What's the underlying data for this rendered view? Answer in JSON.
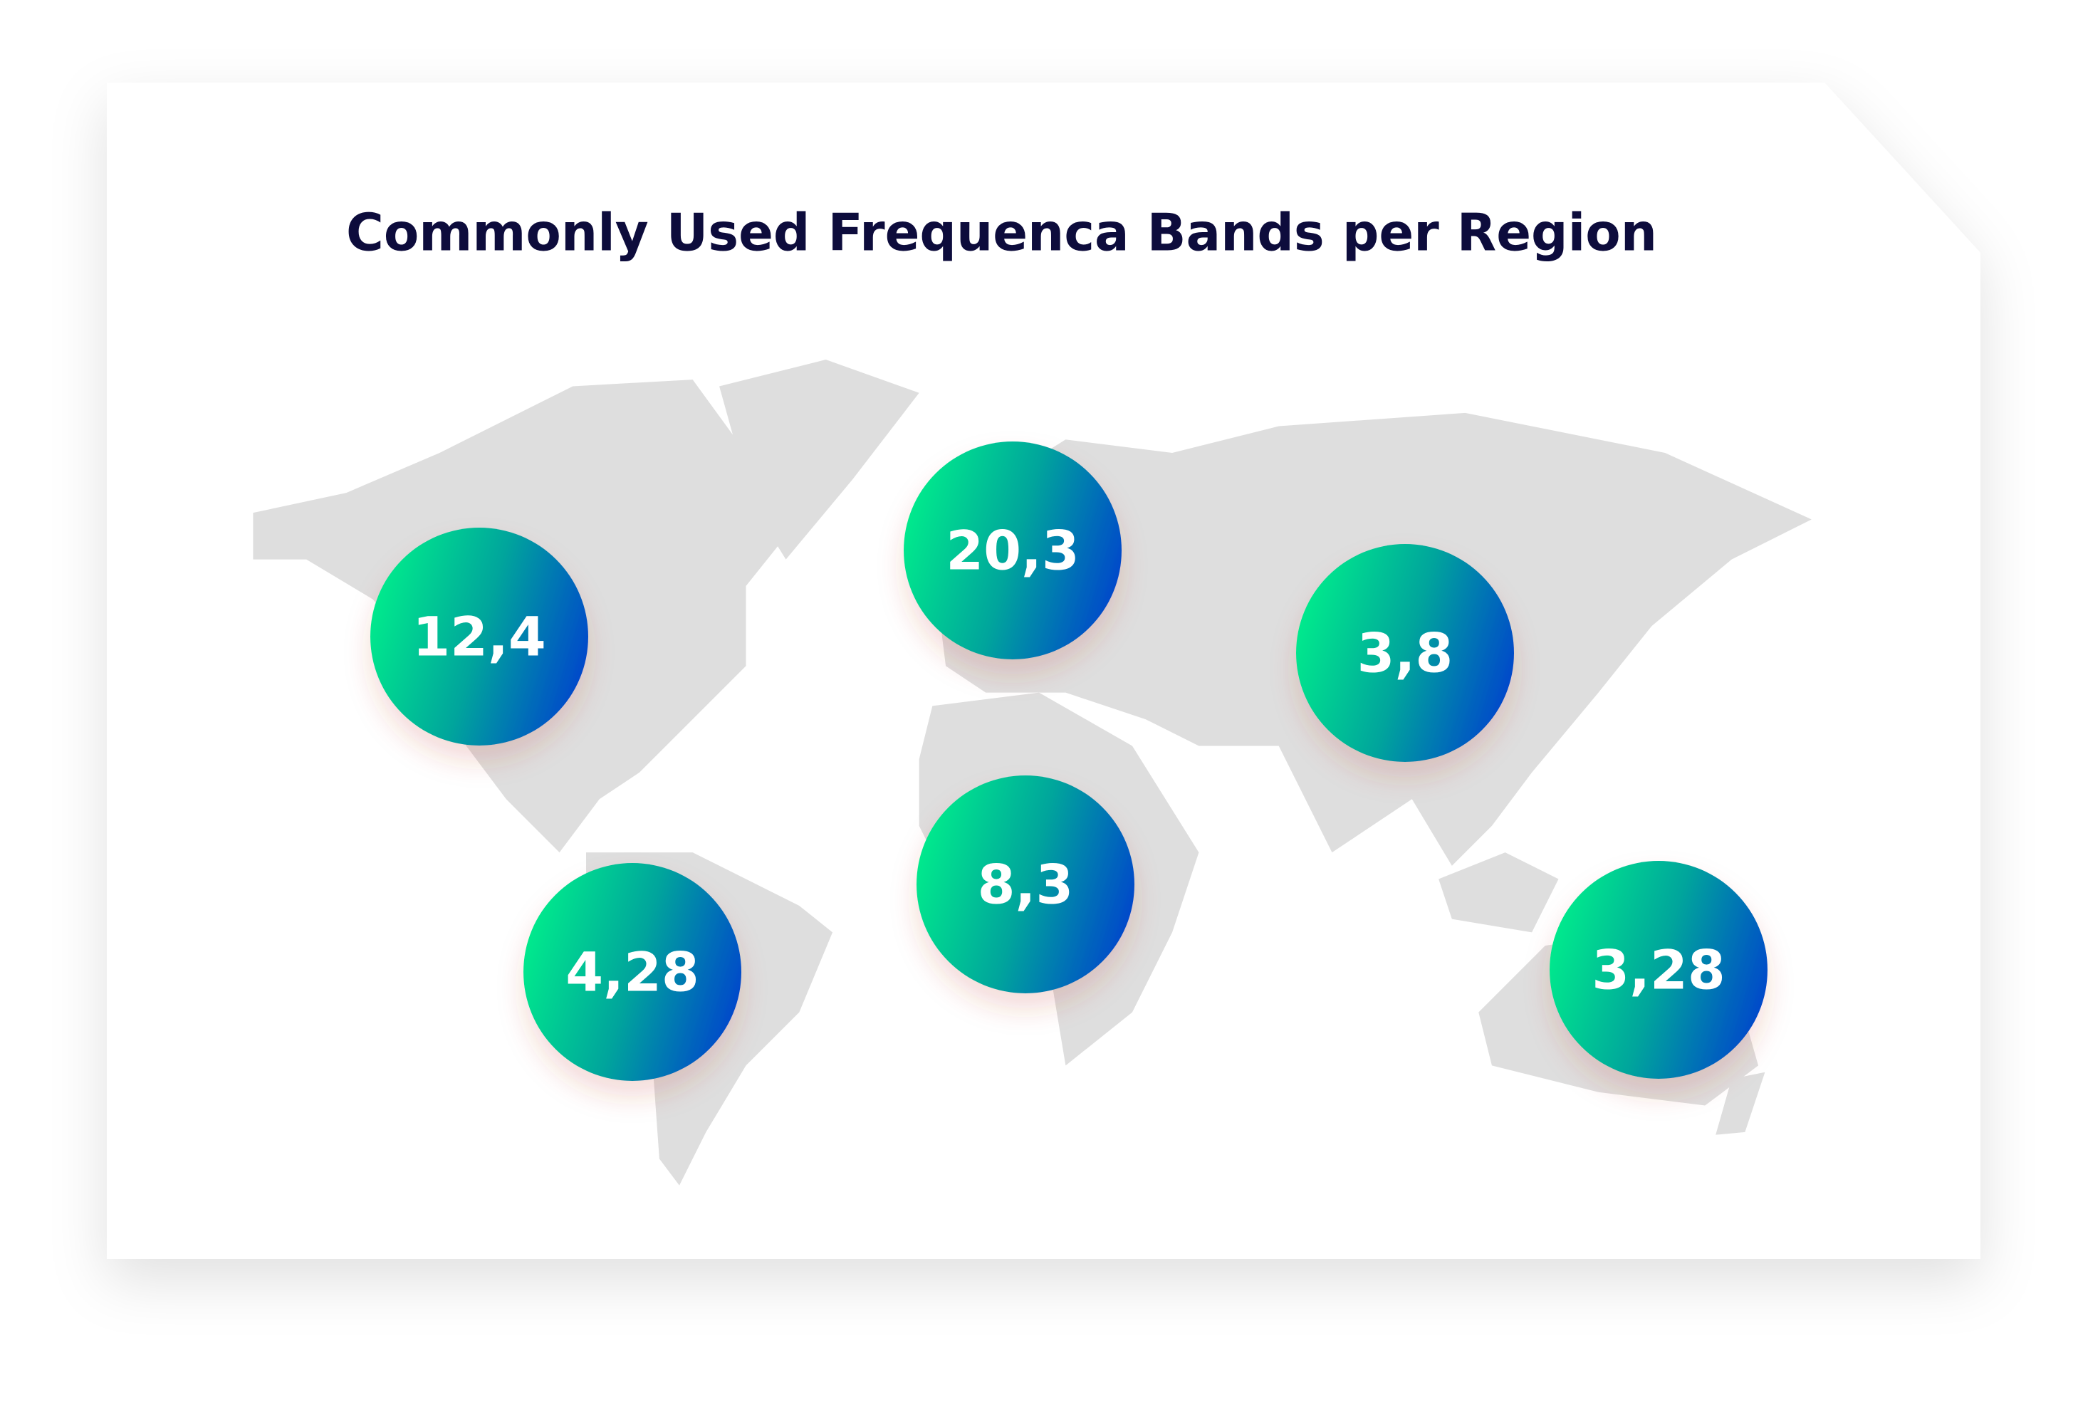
{
  "title": "Commonly Used Frequenca Bands per Region",
  "markers": [
    {
      "label": "12,4"
    },
    {
      "label": "20,3"
    },
    {
      "label": "3,8"
    },
    {
      "label": "8,3"
    },
    {
      "label": "4,28"
    },
    {
      "label": "3,28"
    }
  ]
}
